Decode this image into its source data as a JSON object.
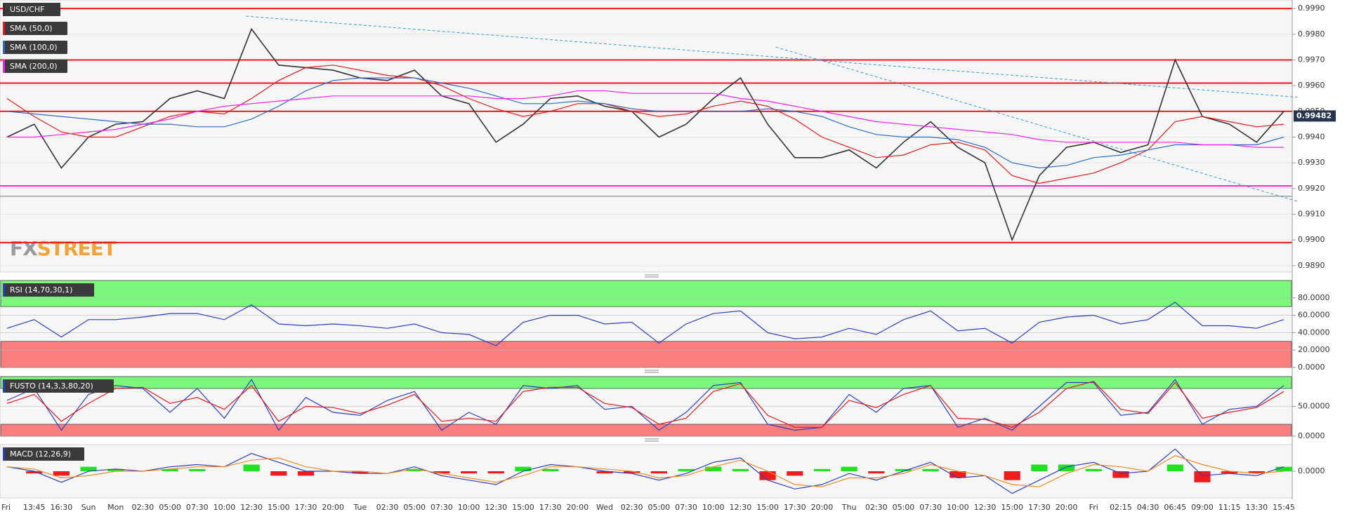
{
  "chart_data": [
    {
      "type": "line",
      "grid": true,
      "ylim": [
        0.98875,
        0.99933
      ],
      "yticks": [
        {
          "value": 0.989,
          "label": "0.9890"
        },
        {
          "value": 0.99,
          "label": "0.9900"
        },
        {
          "value": 0.991,
          "label": "0.9910"
        },
        {
          "value": 0.992,
          "label": "0.9920"
        },
        {
          "value": 0.993,
          "label": "0.9930"
        },
        {
          "value": 0.994,
          "label": "0.9940"
        },
        {
          "value": 0.995,
          "label": "0.9950"
        },
        {
          "value": 0.996,
          "label": "0.9960"
        },
        {
          "value": 0.997,
          "label": "0.9970"
        },
        {
          "value": 0.998,
          "label": "0.9980"
        },
        {
          "value": 0.999,
          "label": "0.9990"
        }
      ],
      "watermark": [
        "FX",
        "STREET"
      ],
      "hlines": [
        {
          "value": 0.999,
          "color": "#e8191b"
        },
        {
          "value": 0.997,
          "color": "#e8191b"
        },
        {
          "value": 0.9961,
          "color": "#e8191b"
        },
        {
          "value": 0.995,
          "color": "#e8191b"
        },
        {
          "value": 0.9899,
          "color": "#e8191b"
        },
        {
          "value": 0.9921,
          "color": "#ee22ee"
        },
        {
          "value": 0.9917,
          "color": "#777777"
        }
      ],
      "trendlines": [
        {
          "points": [
            [
              8.8,
              0.9987
            ],
            [
              47.5,
              0.99555
            ]
          ]
        },
        {
          "points": [
            [
              28.3,
              0.9975
            ],
            [
              47.5,
              0.9915
            ]
          ]
        }
      ],
      "last": {
        "value": 0.99482,
        "label": "0.99482"
      },
      "series": [
        {
          "name": "USD/CHF",
          "color": "#333333",
          "values": [
            0.994,
            0.9945,
            0.9928,
            0.994,
            0.9945,
            0.9946,
            0.9955,
            0.9958,
            0.9955,
            0.9982,
            0.9968,
            0.9967,
            0.9966,
            0.9963,
            0.9962,
            0.9966,
            0.9956,
            0.9953,
            0.9938,
            0.9945,
            0.9955,
            0.9956,
            0.9952,
            0.995,
            0.994,
            0.9945,
            0.9955,
            0.9963,
            0.9945,
            0.9932,
            0.9932,
            0.9935,
            0.9928,
            0.9938,
            0.9946,
            0.9936,
            0.993,
            0.99,
            0.9925,
            0.9936,
            0.9938,
            0.9934,
            0.9937,
            0.997,
            0.9948,
            0.9945,
            0.9938,
            0.995
          ]
        },
        {
          "name": "SMA (50,0)",
          "color": "#e8191b",
          "values": [
            0.9955,
            0.9948,
            0.9942,
            0.994,
            0.994,
            0.9944,
            0.9948,
            0.995,
            0.9949,
            0.9955,
            0.9962,
            0.9967,
            0.9968,
            0.9966,
            0.9964,
            0.9963,
            0.996,
            0.9955,
            0.9951,
            0.9948,
            0.995,
            0.9953,
            0.9953,
            0.995,
            0.9948,
            0.9949,
            0.9952,
            0.9954,
            0.9952,
            0.9947,
            0.994,
            0.9936,
            0.9932,
            0.9933,
            0.9937,
            0.9938,
            0.9935,
            0.9925,
            0.9922,
            0.9924,
            0.9926,
            0.993,
            0.9935,
            0.9946,
            0.9948,
            0.9946,
            0.9944,
            0.9945
          ]
        },
        {
          "name": "SMA (100,0)",
          "color": "#2a6cc4",
          "values": [
            0.995,
            0.9949,
            0.9948,
            0.9947,
            0.9946,
            0.9945,
            0.9945,
            0.9944,
            0.9944,
            0.9947,
            0.9952,
            0.9958,
            0.9962,
            0.9963,
            0.9963,
            0.9963,
            0.9961,
            0.9959,
            0.9956,
            0.9953,
            0.9953,
            0.9954,
            0.9953,
            0.9951,
            0.995,
            0.995,
            0.995,
            0.995,
            0.9951,
            0.995,
            0.9948,
            0.9944,
            0.9941,
            0.994,
            0.994,
            0.9939,
            0.9936,
            0.993,
            0.9928,
            0.9929,
            0.9932,
            0.9933,
            0.9935,
            0.9937,
            0.9937,
            0.9937,
            0.9937,
            0.994
          ]
        },
        {
          "name": "SMA (200,0)",
          "color": "#ee22ee",
          "values": [
            0.994,
            0.994,
            0.9941,
            0.9942,
            0.9943,
            0.9945,
            0.9947,
            0.995,
            0.9952,
            0.9953,
            0.9954,
            0.9955,
            0.9956,
            0.9956,
            0.9956,
            0.9956,
            0.9956,
            0.9956,
            0.9955,
            0.9955,
            0.9956,
            0.9958,
            0.9958,
            0.9957,
            0.9957,
            0.9957,
            0.9957,
            0.9955,
            0.9954,
            0.9952,
            0.995,
            0.9948,
            0.9946,
            0.9945,
            0.9944,
            0.9943,
            0.9942,
            0.9941,
            0.9939,
            0.9938,
            0.9938,
            0.9938,
            0.9938,
            0.9938,
            0.9937,
            0.9937,
            0.9936,
            0.9936
          ]
        }
      ]
    },
    {
      "type": "line",
      "title": "RSI (14,70,30,1)",
      "grid": true,
      "ylim": [
        0,
        100
      ],
      "yticks": [
        {
          "value": 0,
          "label": "0.0000"
        },
        {
          "value": 20,
          "label": "20.0000"
        },
        {
          "value": 40,
          "label": "40.0000"
        },
        {
          "value": 60,
          "label": "60.0000"
        },
        {
          "value": 80,
          "label": "80.0000"
        }
      ],
      "zones": [
        {
          "from": 70,
          "to": 100,
          "color": "#7cf77c"
        },
        {
          "from": 0,
          "to": 30,
          "color": "#f97f7f"
        }
      ],
      "series": [
        {
          "color": "#2a3fc4",
          "values": [
            45,
            55,
            35,
            55,
            55,
            58,
            62,
            62,
            55,
            72,
            50,
            48,
            50,
            48,
            45,
            50,
            40,
            38,
            25,
            52,
            60,
            60,
            50,
            52,
            28,
            50,
            62,
            65,
            40,
            33,
            35,
            45,
            38,
            55,
            65,
            42,
            45,
            28,
            52,
            58,
            60,
            50,
            55,
            75,
            48,
            48,
            45,
            55
          ]
        }
      ]
    },
    {
      "type": "line",
      "title": "FUSTO (14,3,3,80,20)",
      "grid": true,
      "ylim": [
        0,
        100
      ],
      "yticks": [
        {
          "value": 0,
          "label": "0.0000"
        },
        {
          "value": 50,
          "label": "50.0000"
        }
      ],
      "zones": [
        {
          "from": 80,
          "to": 100,
          "color": "#7cf77c"
        },
        {
          "from": 0,
          "to": 20,
          "color": "#f97f7f"
        }
      ],
      "series": [
        {
          "color": "#2a3fc4",
          "values": [
            60,
            80,
            10,
            70,
            85,
            80,
            40,
            80,
            30,
            95,
            10,
            65,
            40,
            35,
            60,
            75,
            10,
            40,
            20,
            85,
            80,
            85,
            45,
            50,
            10,
            40,
            85,
            90,
            20,
            10,
            15,
            70,
            40,
            80,
            85,
            15,
            30,
            10,
            50,
            90,
            90,
            35,
            40,
            95,
            20,
            45,
            50,
            85
          ]
        },
        {
          "color": "#e8191b",
          "values": [
            55,
            70,
            25,
            55,
            80,
            82,
            55,
            65,
            45,
            85,
            25,
            50,
            48,
            38,
            52,
            70,
            25,
            30,
            25,
            75,
            82,
            82,
            55,
            48,
            20,
            30,
            75,
            88,
            35,
            15,
            15,
            60,
            48,
            70,
            85,
            30,
            28,
            15,
            40,
            80,
            92,
            45,
            38,
            90,
            30,
            40,
            48,
            75
          ]
        }
      ]
    },
    {
      "type": "macd",
      "title": "MACD (12,26,9)",
      "grid": false,
      "ylim": [
        -0.0012,
        0.0012
      ],
      "yticks": [
        {
          "value": 0,
          "label": "0.0000"
        }
      ],
      "categories": [
        "Fri",
        "13:45",
        "16:30",
        "Sun",
        "Mon",
        "02:30",
        "05:00",
        "07:30",
        "10:00",
        "12:30",
        "15:00",
        "17:30",
        "20:00",
        "Tue",
        "02:30",
        "05:00",
        "07:30",
        "10:00",
        "12:30",
        "15:00",
        "17:30",
        "20:00",
        "Wed",
        "02:30",
        "05:00",
        "07:30",
        "10:00",
        "12:30",
        "15:00",
        "17:30",
        "20:00",
        "Thu",
        "02:30",
        "05:00",
        "07:30",
        "10:00",
        "12:30",
        "15:00",
        "17:30",
        "20:00",
        "Fri",
        "02:15",
        "04:30",
        "06:45",
        "09:00",
        "11:15",
        "13:30",
        "15:45"
      ],
      "series": [
        {
          "kind": "bar",
          "color": "#22e022",
          "negative_color": "#ee1c1c",
          "values": [
            0,
            -0.0001,
            -0.0002,
            0.0002,
            0.0001,
            0,
            0.0001,
            0.0001,
            0,
            0.0003,
            -0.0002,
            -0.0002,
            0,
            -0.0001,
            0,
            0.0001,
            -0.0001,
            -0.0001,
            -0.0001,
            0.0002,
            0.0001,
            0,
            -0.0001,
            -0.0001,
            -0.0001,
            0.0001,
            0.0002,
            0.0001,
            -0.0004,
            -0.0002,
            0.0001,
            0.0002,
            -0.0001,
            0.0001,
            0.0001,
            -0.0003,
            0,
            -0.0004,
            0.0003,
            0.0003,
            0.0001,
            -0.0003,
            0,
            0.0003,
            -0.0005,
            -0.0001,
            -0.0001,
            0.0002
          ]
        },
        {
          "color": "#2a3fc4",
          "values": [
            0.0002,
            0,
            -0.0005,
            0,
            0.0001,
            0,
            0.0002,
            0.0003,
            0.0002,
            0.0008,
            0.0004,
            0,
            0,
            -0.0001,
            -0.0001,
            0.0002,
            -0.0002,
            -0.0004,
            -0.0006,
            0,
            0.0003,
            0.0002,
            0,
            -0.0001,
            -0.0004,
            -0.0001,
            0.0004,
            0.0006,
            -0.0004,
            -0.0008,
            -0.0006,
            -0.0001,
            -0.0004,
            0,
            0.0004,
            -0.0003,
            -0.0002,
            -0.001,
            -0.0004,
            0.0002,
            0.0004,
            -0.0001,
            0,
            0.001,
            -0.0002,
            -0.0001,
            -0.0002,
            0.0002
          ]
        },
        {
          "color": "#f08a24",
          "values": [
            0.0002,
            0.0001,
            -0.0003,
            -0.0002,
            0,
            0,
            0.0001,
            0.0002,
            0.0002,
            0.0005,
            0.0006,
            0.0002,
            0,
            0,
            -0.0001,
            0.0001,
            -0.0001,
            -0.0003,
            -0.0005,
            -0.0002,
            0.0002,
            0.0002,
            0.0001,
            0,
            -0.0003,
            -0.0002,
            0.0002,
            0.0005,
            0,
            -0.0006,
            -0.0007,
            -0.0003,
            -0.0003,
            -0.0001,
            0.0003,
            0,
            -0.0002,
            -0.0006,
            -0.0007,
            -0.0001,
            0.0003,
            0.0002,
            0,
            0.0007,
            0.0003,
            0,
            -0.0001,
            0
          ]
        }
      ]
    }
  ]
}
